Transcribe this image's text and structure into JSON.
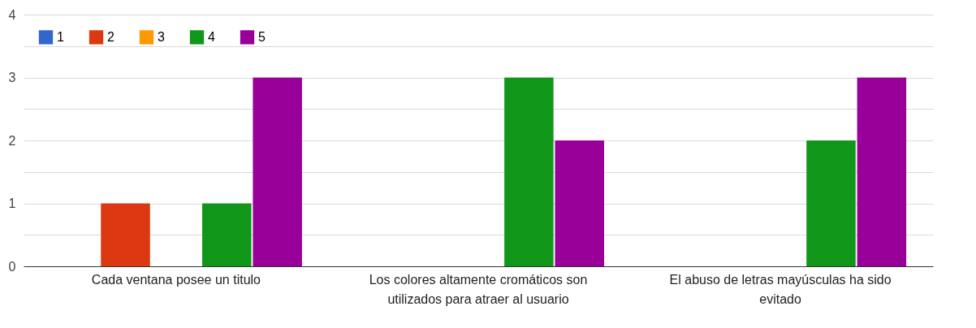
{
  "chart_data": {
    "type": "bar",
    "categories": [
      "Cada ventana posee un titulo",
      "Los colores altamente cromáticos son utilizados para atraer al usuario",
      "El abuso de letras mayúsculas ha sido evitado"
    ],
    "series": [
      {
        "name": "1",
        "color": "#3366cc",
        "values": [
          0,
          0,
          0
        ]
      },
      {
        "name": "2",
        "color": "#dc3912",
        "values": [
          1,
          0,
          0
        ]
      },
      {
        "name": "3",
        "color": "#ff9900",
        "values": [
          0,
          0,
          0
        ]
      },
      {
        "name": "4",
        "color": "#109618",
        "values": [
          1,
          3,
          2
        ]
      },
      {
        "name": "5",
        "color": "#990099",
        "values": [
          3,
          2,
          3
        ]
      }
    ],
    "ylim": [
      0,
      4
    ],
    "yticks": [
      0,
      {
        "value": 0.5,
        "label": null
      },
      1,
      {
        "value": 1.5,
        "label": null
      },
      2,
      {
        "value": 2.5,
        "label": null
      },
      3,
      {
        "value": 3.5,
        "label": null
      },
      4
    ],
    "grid": "y",
    "legend": "top left"
  }
}
